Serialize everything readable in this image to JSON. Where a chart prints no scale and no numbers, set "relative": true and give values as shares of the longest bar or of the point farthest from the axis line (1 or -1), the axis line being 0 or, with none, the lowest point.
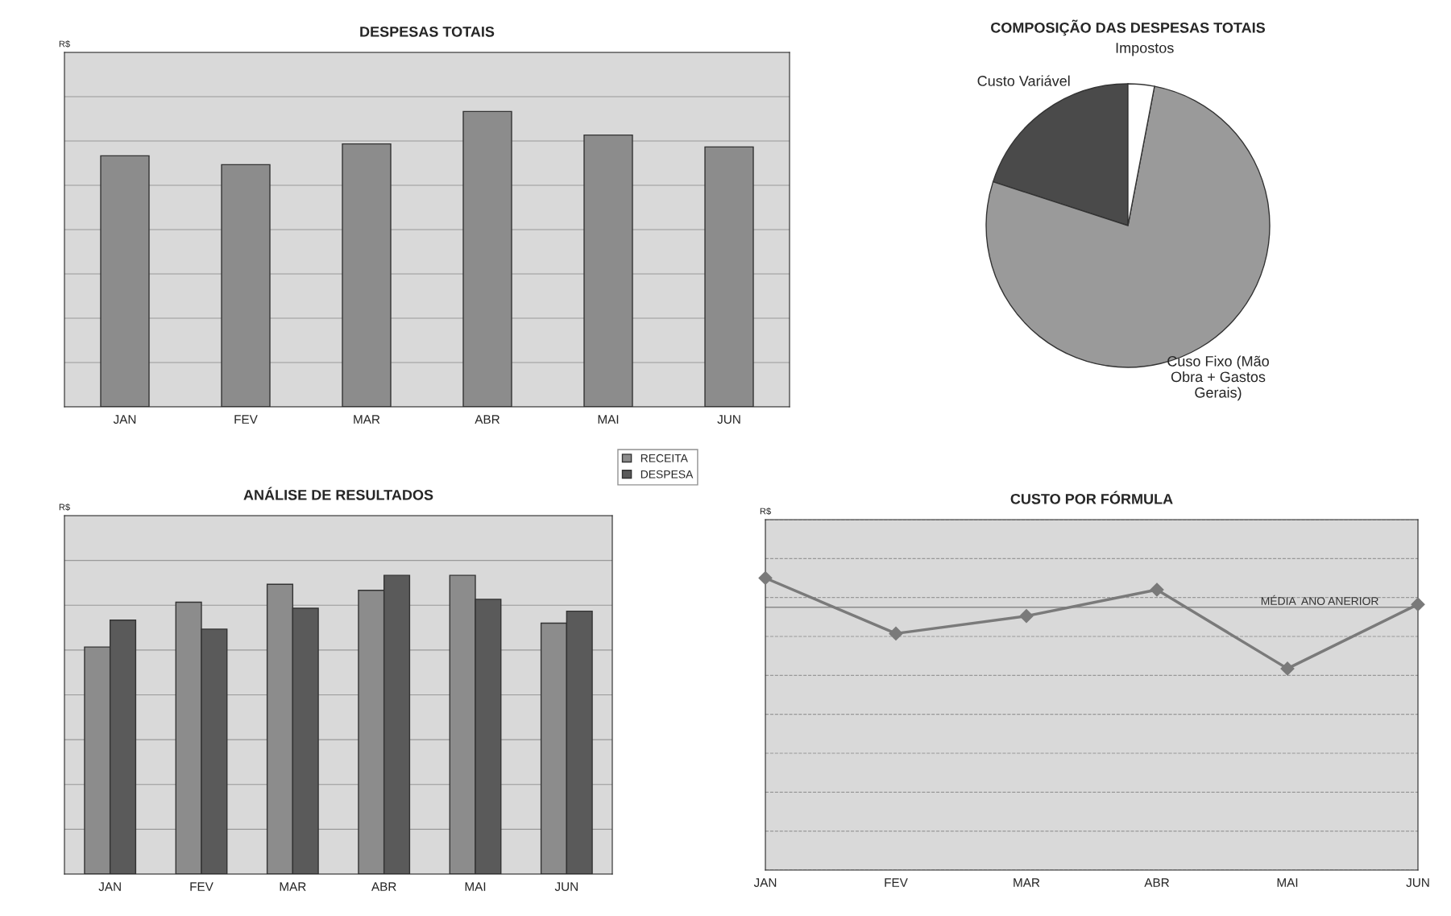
{
  "chart_data": [
    {
      "type": "bar",
      "title": "DESPESAS TOTAIS",
      "ylabel": "R$",
      "relative": true,
      "grid": "y",
      "categories": [
        "JAN",
        "FEV",
        "MAR",
        "ABR",
        "MAI",
        "JUN"
      ],
      "values": [
        0.85,
        0.82,
        0.89,
        1.0,
        0.92,
        0.88
      ],
      "color": "#8c8c8c"
    },
    {
      "type": "pie",
      "title": "COMPOSIÇÃO DAS DESPESAS TOTAIS",
      "categories": [
        "Custo Variável",
        "Cuso Fixo (Mão\nObra + Gastos\nGerais)",
        "Impostos"
      ],
      "values": [
        20,
        77,
        3
      ],
      "colors": [
        "#4a4a4a",
        "#9a9a9a",
        "#ffffff"
      ]
    },
    {
      "type": "bar",
      "title": "ANÁLISE DE RESULTADOS",
      "ylabel": "R$",
      "relative": true,
      "grid": "y",
      "legend": "top right",
      "categories": [
        "JAN",
        "FEV",
        "MAR",
        "ABR",
        "MAI",
        "JUN"
      ],
      "series": [
        {
          "name": "RECEITA",
          "color": "#8c8c8c",
          "values": [
            0.76,
            0.91,
            0.97,
            0.95,
            1.0,
            0.84
          ]
        },
        {
          "name": "DESPESA",
          "color": "#5a5a5a",
          "values": [
            0.85,
            0.82,
            0.89,
            1.0,
            0.92,
            0.88
          ]
        }
      ]
    },
    {
      "type": "line",
      "title": "CUSTO POR FÓRMULA",
      "ylabel": "R$",
      "relative": true,
      "grid": "y",
      "marker": "diamond",
      "line_style": "solid",
      "categories": [
        "JAN",
        "FEV",
        "MAR",
        "ABR",
        "MAI",
        "JUN"
      ],
      "values": [
        1.0,
        0.81,
        0.87,
        0.96,
        0.69,
        0.91
      ],
      "color": "#7a7a7a",
      "ref_lines": [
        {
          "axis": "y",
          "value": 0.9,
          "label": "MÉDIA  ANO ANERIOR",
          "color": "#8a8a8a"
        }
      ]
    }
  ]
}
